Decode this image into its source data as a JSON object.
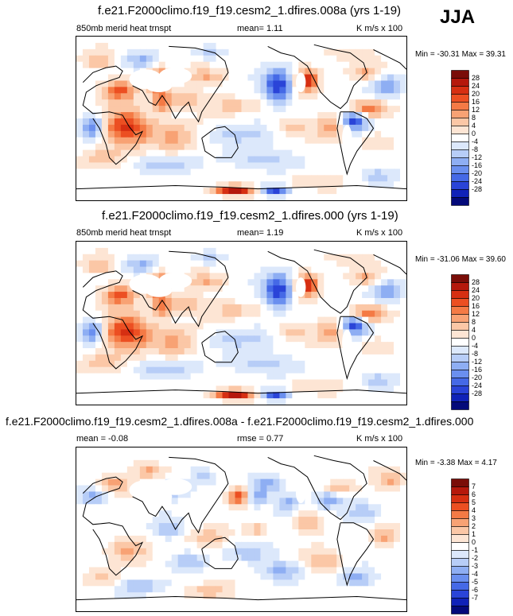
{
  "season": "JJA",
  "panels": [
    {
      "title": "f.e21.F2000climo.f19_f19.cesm2_1.dfires.008a (yrs 1-19)",
      "left_label": "850mb merid heat trnspt",
      "center_label": "mean=   1.11",
      "units": "K m/s x 100",
      "minmax": "Min = -30.31 Max =  39.31",
      "colorbar_labels": [
        "28",
        "24",
        "20",
        "16",
        "12",
        "8",
        "4",
        "0",
        "-4",
        "-8",
        "-12",
        "-16",
        "-20",
        "-24",
        "-28"
      ],
      "colorbar_colors": [
        "#7a0d08",
        "#b5180c",
        "#d62f12",
        "#ec4f22",
        "#f47a45",
        "#f8a274",
        "#fbc7a6",
        "#fde5d4",
        "#ffffff",
        "#dce8fb",
        "#b7cdf7",
        "#8eaef3",
        "#6a8fef",
        "#4569e6",
        "#2a44d8",
        "#1022b8",
        "#040a7a"
      ],
      "diff": false
    },
    {
      "title": "f.e21.F2000climo.f19_f19.cesm2_1.dfires.000 (yrs 1-19)",
      "left_label": "850mb merid heat trnspt",
      "center_label": "mean=   1.19",
      "units": "K m/s x 100",
      "minmax": "Min = -31.06 Max =  39.60",
      "colorbar_labels": [
        "28",
        "24",
        "20",
        "16",
        "12",
        "8",
        "4",
        "0",
        "-4",
        "-8",
        "-12",
        "-16",
        "-20",
        "-24",
        "-28"
      ],
      "colorbar_colors": [
        "#7a0d08",
        "#b5180c",
        "#d62f12",
        "#ec4f22",
        "#f47a45",
        "#f8a274",
        "#fbc7a6",
        "#fde5d4",
        "#ffffff",
        "#dce8fb",
        "#b7cdf7",
        "#8eaef3",
        "#6a8fef",
        "#4569e6",
        "#2a44d8",
        "#1022b8",
        "#040a7a"
      ],
      "diff": false
    },
    {
      "title": "f.e21.F2000climo.f19_f19.cesm2_1.dfires.008a - f.e21.F2000climo.f19_f19.cesm2_1.dfires.000",
      "left_label": "mean =  -0.08",
      "center_label": "rmse =   0.77",
      "units": "K m/s x 100",
      "minmax": "Min =  -3.38 Max =   4.17",
      "colorbar_labels": [
        "7",
        "6",
        "5",
        "4",
        "3",
        "2",
        "1",
        "0",
        "-1",
        "-2",
        "-3",
        "-4",
        "-5",
        "-6",
        "-7"
      ],
      "colorbar_colors": [
        "#7a0d08",
        "#b5180c",
        "#d62f12",
        "#ec4f22",
        "#f47a45",
        "#f8a274",
        "#fbc7a6",
        "#fde5d4",
        "#ffffff",
        "#dce8fb",
        "#b7cdf7",
        "#8eaef3",
        "#6a8fef",
        "#4569e6",
        "#2a44d8",
        "#1022b8",
        "#040a7a"
      ],
      "diff": true
    }
  ],
  "chart_data": [
    {
      "type": "heatmap",
      "title": "f.e21.F2000climo.f19_f19.cesm2_1.dfires.008a (yrs 1-19)",
      "variable": "850mb merid heat trnspt",
      "units": "K m/s x 100",
      "season": "JJA",
      "mean": 1.11,
      "min": -30.31,
      "max": 39.31,
      "contour_levels": [
        -28,
        -24,
        -20,
        -16,
        -12,
        -8,
        -4,
        0,
        4,
        8,
        12,
        16,
        20,
        24,
        28
      ]
    },
    {
      "type": "heatmap",
      "title": "f.e21.F2000climo.f19_f19.cesm2_1.dfires.000 (yrs 1-19)",
      "variable": "850mb merid heat trnspt",
      "units": "K m/s x 100",
      "season": "JJA",
      "mean": 1.19,
      "min": -31.06,
      "max": 39.6,
      "contour_levels": [
        -28,
        -24,
        -20,
        -16,
        -12,
        -8,
        -4,
        0,
        4,
        8,
        12,
        16,
        20,
        24,
        28
      ]
    },
    {
      "type": "heatmap",
      "title": "f.e21.F2000climo.f19_f19.cesm2_1.dfires.008a - f.e21.F2000climo.f19_f19.cesm2_1.dfires.000",
      "units": "K m/s x 100",
      "season": "JJA",
      "mean": -0.08,
      "rmse": 0.77,
      "min": -3.38,
      "max": 4.17,
      "contour_levels": [
        -7,
        -6,
        -5,
        -4,
        -3,
        -2,
        -1,
        0,
        1,
        2,
        3,
        4,
        5,
        6,
        7
      ]
    }
  ]
}
